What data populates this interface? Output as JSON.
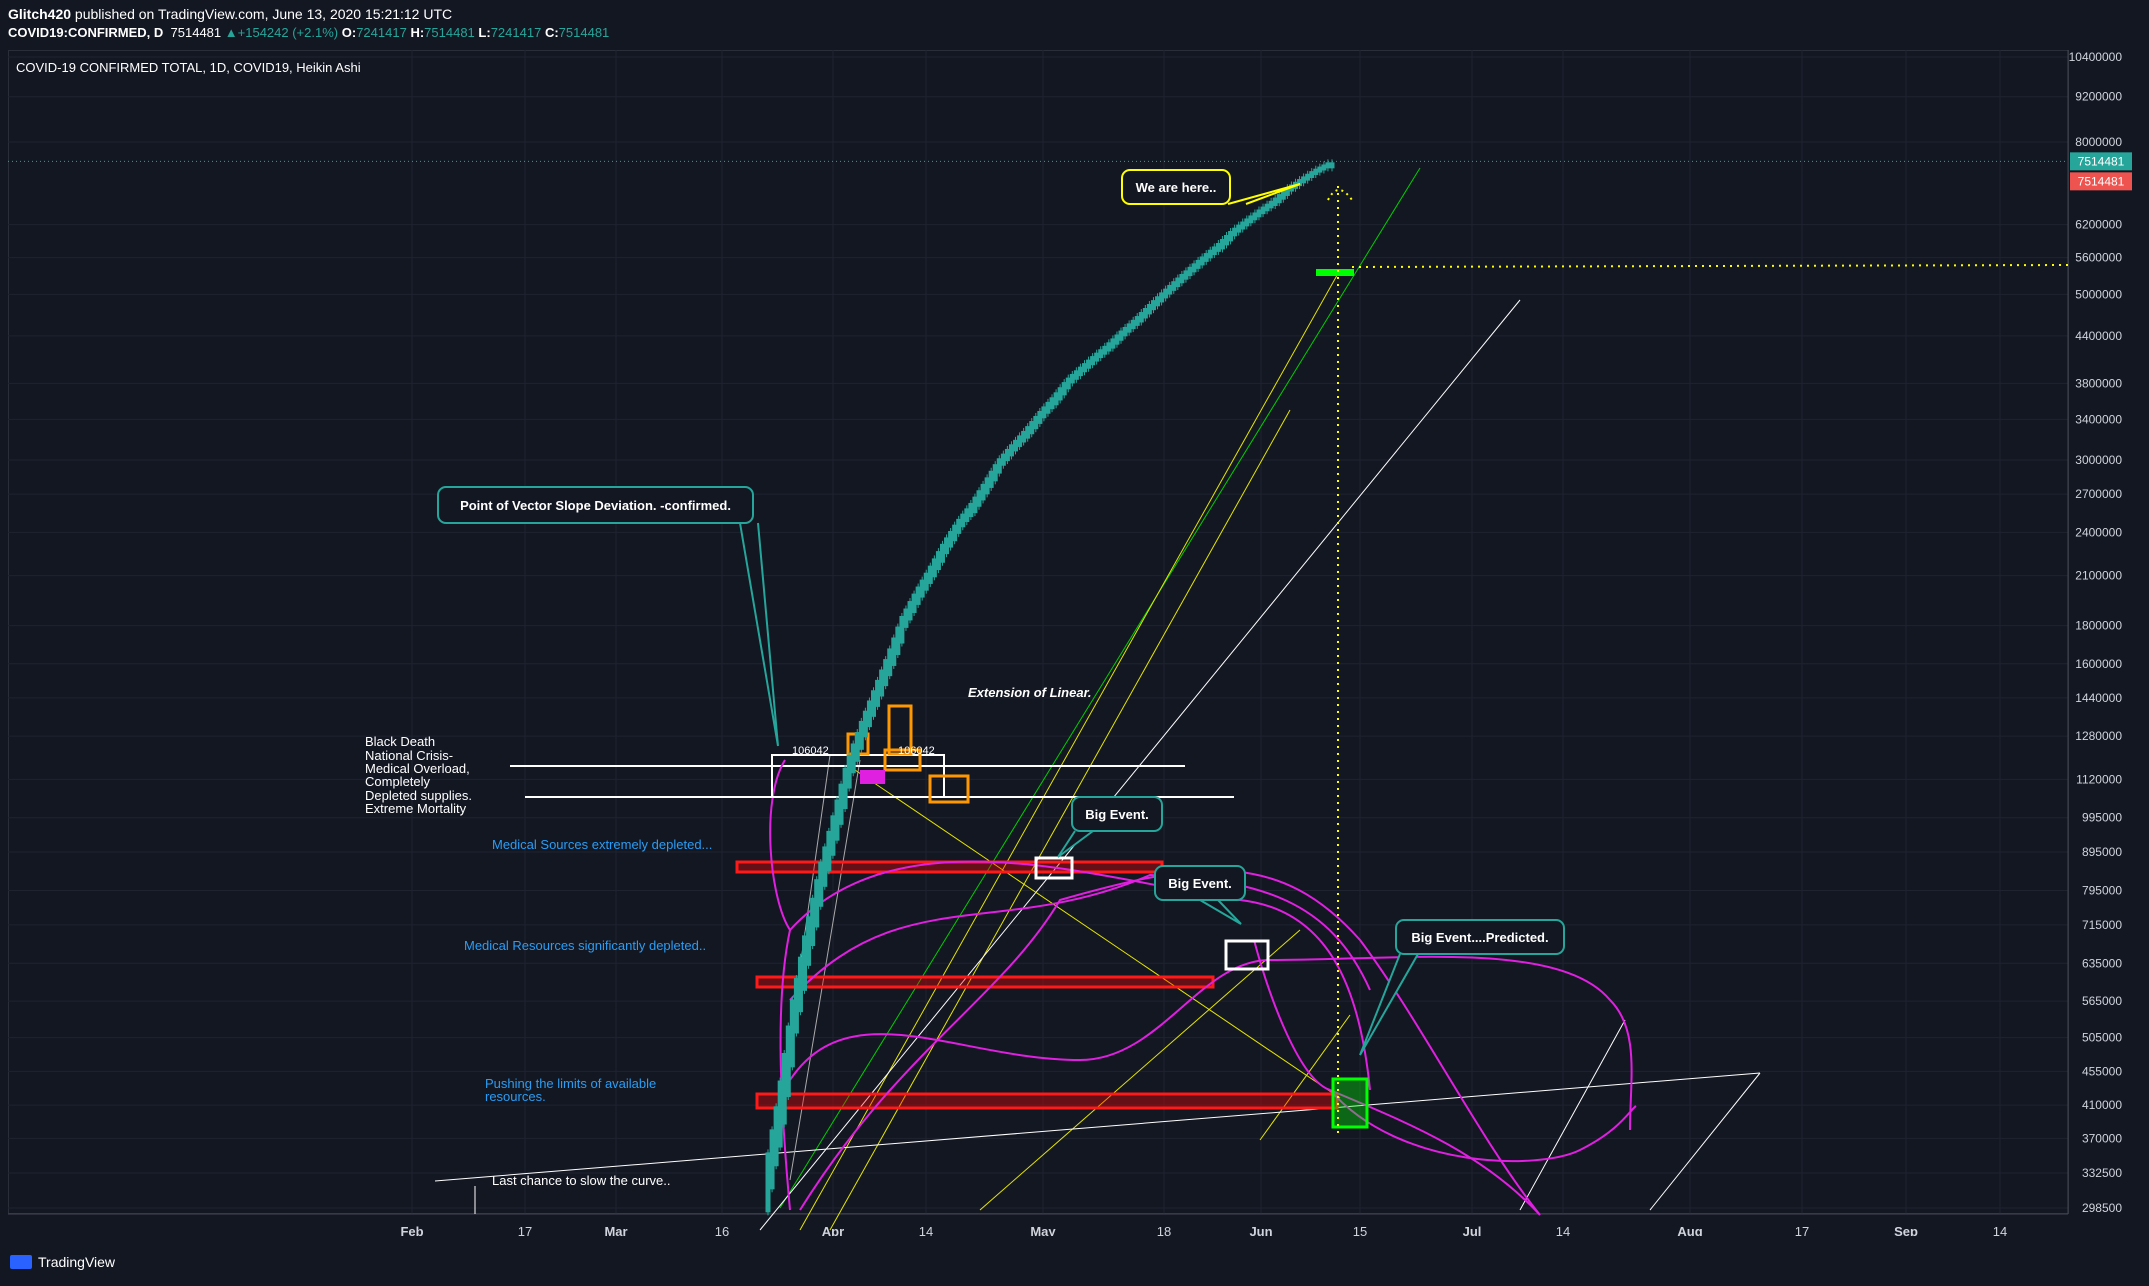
{
  "header": {
    "line1_author": "Glitch420",
    "line1_rest": " published on TradingView.com, June 13, 2020 15:21:12 UTC",
    "symbol": "COVID19:CONFIRMED, D",
    "last": "7514481",
    "change": "▲+154242 (+2.1%)",
    "o_label": "O:",
    "o": "7241417",
    "h_label": "H:",
    "h": "7514481",
    "l_label": "L:",
    "l": "7241417",
    "c_label": "C:",
    "c": "7514481"
  },
  "legend": "COVID-19 CONFIRMED TOTAL, 1D, COVID19, Heikin Ashi",
  "footer": {
    "brand": "TradingView"
  },
  "price_tags": {
    "last": "7514481",
    "last2": "7514481"
  },
  "chart_data": {
    "type": "candlestick",
    "title": "COVID-19 CONFIRMED TOTAL, 1D, COVID19, Heikin Ashi",
    "y_scale": "log",
    "y_ticks": [
      10400000,
      9200000,
      8000000,
      6200000,
      5600000,
      5000000,
      4400000,
      3800000,
      3400000,
      3000000,
      2700000,
      2400000,
      2100000,
      1800000,
      1600000,
      1440000,
      1280000,
      1120000,
      995000,
      895000,
      795000,
      715000,
      635000,
      565000,
      505000,
      455000,
      410000,
      370000,
      332500,
      298500
    ],
    "x_ticks": [
      "Feb",
      "17",
      "Mar",
      "16",
      "Apr",
      "14",
      "May",
      "18",
      "Jun",
      "15",
      "Jul",
      "14",
      "Aug",
      "17",
      "Sep",
      "14"
    ],
    "series": [
      {
        "name": "COVID19:CONFIRMED",
        "dates": [
          "Mar 24",
          "Mar 26",
          "Mar 28",
          "Mar 30",
          "Apr 1",
          "Apr 3",
          "Apr 5",
          "Apr 7",
          "Apr 9",
          "Apr 11",
          "Apr 13",
          "Apr 15",
          "Apr 17",
          "Apr 19",
          "Apr 21",
          "Apr 23",
          "Apr 25",
          "Apr 27",
          "Apr 29",
          "May 1",
          "May 3",
          "May 5",
          "May 7",
          "May 9",
          "May 11",
          "May 13",
          "May 15",
          "May 17",
          "May 19",
          "May 21",
          "May 23",
          "May 25",
          "May 27",
          "May 29",
          "May 31",
          "Jun 2",
          "Jun 4",
          "Jun 6",
          "Jun 8",
          "Jun 10",
          "Jun 12",
          "Jun 13"
        ],
        "values": [
          330000,
          420000,
          560000,
          700000,
          850000,
          1000000,
          1180000,
          1330000,
          1480000,
          1650000,
          1850000,
          2000000,
          2150000,
          2320000,
          2480000,
          2620000,
          2800000,
          3000000,
          3150000,
          3300000,
          3480000,
          3650000,
          3850000,
          4000000,
          4150000,
          4300000,
          4480000,
          4650000,
          4850000,
          5050000,
          5250000,
          5450000,
          5650000,
          5850000,
          6100000,
          6300000,
          6500000,
          6700000,
          6950000,
          7150000,
          7350000,
          7514481
        ]
      }
    ],
    "annotations": [
      "Point of Vector Slope Deviation. -confirmed.",
      "We are here..",
      "Extension of Linear.",
      "Big Event.",
      "Big Event.",
      "Big Event....Predicted.",
      "Black Death",
      "National Crisis-",
      "Medical Overload,",
      "Completely",
      "Depleted supplies.",
      "Extreme Mortality",
      "Medical Sources extremely depleted...",
      "Medical Resources significantly depleted..",
      "Pushing the limits of available",
      "resources.",
      "Last chance to slow the curve..",
      "106042",
      "106042"
    ],
    "colors": {
      "up": "#26a69a",
      "background": "#131722",
      "magenta": "#e020e0",
      "red_zone": "#ff1a1a",
      "yellow": "#ffff00",
      "green": "#00ff00"
    }
  }
}
